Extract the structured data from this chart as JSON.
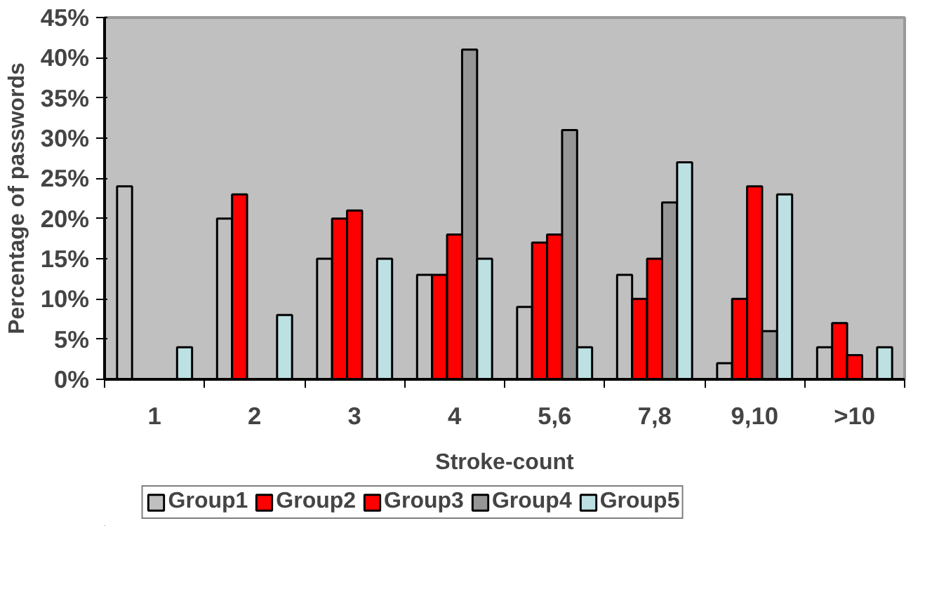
{
  "chart_data": {
    "type": "bar",
    "xlabel": "Stroke-count",
    "ylabel": "Percentage of passwords",
    "categories": [
      "1",
      "2",
      "3",
      "4",
      "5,6",
      "7,8",
      "9,10",
      ">10"
    ],
    "series": [
      {
        "name": "Group1",
        "color": "#c0c0c0",
        "values": [
          24,
          20,
          15,
          13,
          9,
          13,
          2,
          4
        ]
      },
      {
        "name": "Group2",
        "color": "#ff0000",
        "values": [
          0,
          23,
          20,
          13,
          17,
          10,
          10,
          7
        ]
      },
      {
        "name": "Group3",
        "color": "#ff0000",
        "values": [
          0,
          0,
          21,
          18,
          18,
          15,
          24,
          3
        ]
      },
      {
        "name": "Group4",
        "color": "#969696",
        "values": [
          0,
          0,
          0,
          41,
          31,
          22,
          6,
          0
        ]
      },
      {
        "name": "Group5",
        "color": "#bde0e3",
        "values": [
          4,
          8,
          15,
          15,
          4,
          27,
          23,
          4
        ]
      }
    ],
    "ylim": [
      0,
      45
    ],
    "yticks": [
      {
        "value": 0,
        "label": "0%"
      },
      {
        "value": 5,
        "label": "5%"
      },
      {
        "value": 10,
        "label": "10%"
      },
      {
        "value": 15,
        "label": "15%"
      },
      {
        "value": 20,
        "label": "20%"
      },
      {
        "value": 25,
        "label": "25%"
      },
      {
        "value": 30,
        "label": "30%"
      },
      {
        "value": 35,
        "label": "35%"
      },
      {
        "value": 40,
        "label": "40%"
      },
      {
        "value": 45,
        "label": "45%"
      }
    ],
    "grid": false,
    "legend": "bottom"
  }
}
